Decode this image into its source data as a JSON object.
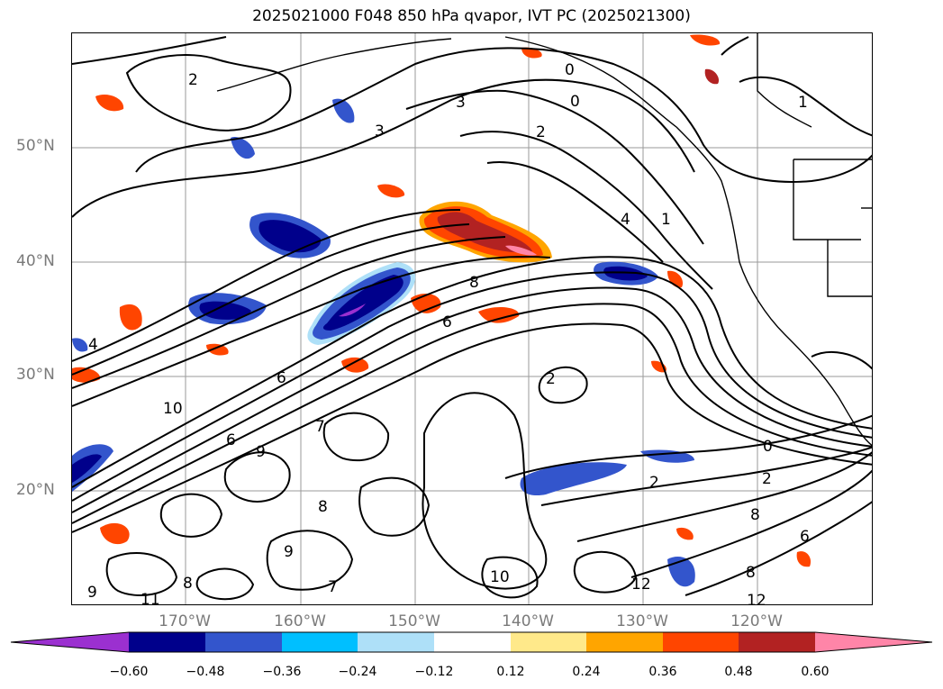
{
  "title": "2025021000 F048 850 hPa qvapor, IVT PC (2025021300)",
  "lat_labels": [
    "50°N",
    "40°N",
    "30°N",
    "20°N"
  ],
  "lon_labels": [
    "170°W",
    "160°W",
    "150°W",
    "140°W",
    "130°W",
    "120°W"
  ],
  "colorbar": {
    "ticks": [
      "−0.60",
      "−0.48",
      "−0.36",
      "−0.24",
      "−0.12",
      "0.12",
      "0.24",
      "0.36",
      "0.48",
      "0.60"
    ],
    "colors": [
      "#9b30d0",
      "#00008b",
      "#3355cc",
      "#00bfff",
      "#aee0f8",
      "#ffffff",
      "#ffe98a",
      "#ffa500",
      "#ff4500",
      "#b22222",
      "#ff85a8"
    ]
  },
  "contour_labels": [
    "2",
    "3",
    "3",
    "0",
    "0",
    "2",
    "1",
    "1",
    "4",
    "8",
    "6",
    "10",
    "2",
    "0",
    "2",
    "4",
    "2",
    "9",
    "6",
    "7",
    "8",
    "9",
    "6",
    "10",
    "8",
    "11",
    "9",
    "8",
    "7",
    "12",
    "12",
    "8",
    "6"
  ]
}
